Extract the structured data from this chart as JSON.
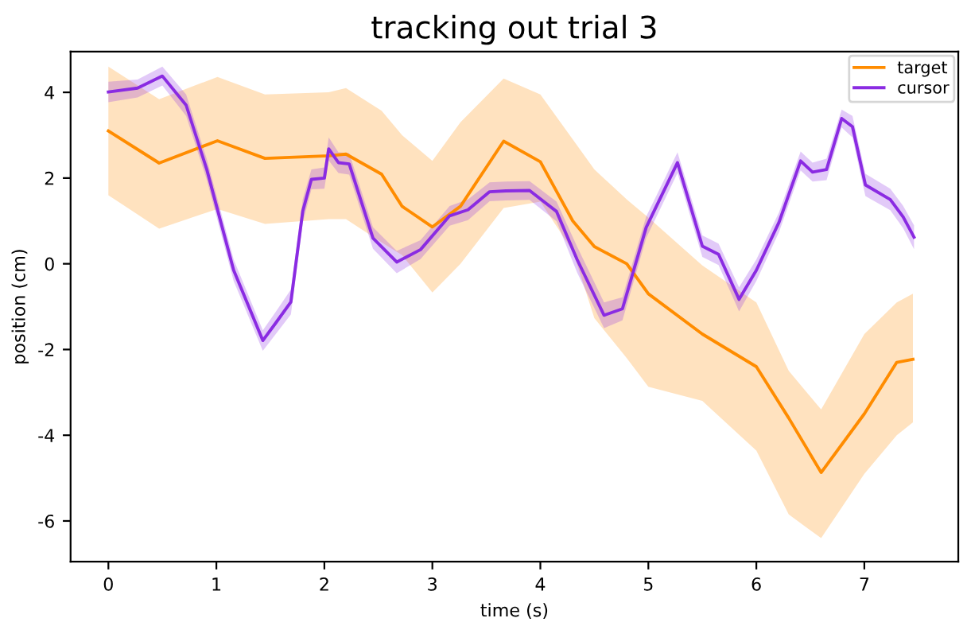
{
  "chart_data": {
    "type": "line",
    "title": "tracking out trial 3",
    "xlabel": "time (s)",
    "ylabel": "position (cm)",
    "xlim": [
      -0.35,
      7.87
    ],
    "ylim": [
      -6.95,
      4.95
    ],
    "xticks": [
      0,
      1,
      2,
      3,
      4,
      5,
      6,
      7
    ],
    "yticks": [
      -6,
      -4,
      -2,
      0,
      2,
      4
    ],
    "grid": false,
    "legend": "top right",
    "marker": "none",
    "line_style": "solid",
    "series": [
      {
        "name": "target",
        "color": "#ff8c00",
        "x": [
          0,
          0.47,
          1.01,
          1.45,
          2.04,
          2.2,
          2.53,
          2.72,
          3.0,
          3.26,
          3.66,
          4.0,
          4.3,
          4.5,
          4.8,
          5.0,
          5.5,
          6.0,
          6.3,
          6.6,
          7.0,
          7.3,
          7.45
        ],
        "values": [
          3.1,
          2.35,
          2.87,
          2.46,
          2.52,
          2.56,
          2.09,
          1.34,
          0.86,
          1.34,
          2.86,
          2.38,
          1.0,
          0.4,
          0.0,
          -0.7,
          -1.64,
          -2.4,
          -3.6,
          -4.87,
          -3.5,
          -2.3,
          -2.23
        ],
        "upper": [
          4.6,
          3.84,
          4.36,
          3.95,
          4.0,
          4.1,
          3.57,
          3.0,
          2.4,
          3.3,
          4.32,
          3.95,
          2.9,
          2.2,
          1.5,
          1.08,
          -0.04,
          -0.9,
          -2.5,
          -3.4,
          -1.64,
          -0.9,
          -0.7
        ],
        "lower": [
          1.6,
          0.82,
          1.28,
          0.93,
          1.04,
          1.04,
          0.5,
          0.2,
          -0.67,
          0.0,
          1.3,
          1.45,
          0.3,
          -1.27,
          -2.2,
          -2.87,
          -3.2,
          -4.36,
          -5.85,
          -6.4,
          -4.9,
          -4.0,
          -3.7
        ]
      },
      {
        "name": "cursor",
        "color": "#8a2be2",
        "x": [
          0,
          0.27,
          0.5,
          0.72,
          0.91,
          1.16,
          1.43,
          1.55,
          1.69,
          1.8,
          1.88,
          2.0,
          2.04,
          2.13,
          2.23,
          2.45,
          2.67,
          2.89,
          3.16,
          3.33,
          3.53,
          3.68,
          3.9,
          4.15,
          4.34,
          4.59,
          4.76,
          4.98,
          5.27,
          5.5,
          5.65,
          5.84,
          6.0,
          6.21,
          6.41,
          6.52,
          6.65,
          6.79,
          6.89,
          7.01,
          7.24,
          7.36,
          7.46
        ],
        "values": [
          4.01,
          4.1,
          4.38,
          3.7,
          2.21,
          -0.15,
          -1.79,
          -1.38,
          -0.89,
          1.23,
          1.97,
          2.0,
          2.68,
          2.36,
          2.33,
          0.6,
          0.04,
          0.33,
          1.12,
          1.26,
          1.68,
          1.7,
          1.71,
          1.22,
          0.1,
          -1.2,
          -1.05,
          0.85,
          2.36,
          0.41,
          0.22,
          -0.83,
          -0.15,
          0.97,
          2.4,
          2.14,
          2.2,
          3.39,
          3.2,
          1.84,
          1.5,
          1.09,
          0.62
        ],
        "upper": [
          4.25,
          4.3,
          4.6,
          3.95,
          2.45,
          0.1,
          -1.55,
          -1.12,
          -0.6,
          1.5,
          2.2,
          2.25,
          2.95,
          2.6,
          2.58,
          0.85,
          0.3,
          0.55,
          1.35,
          1.5,
          1.9,
          1.92,
          1.93,
          1.45,
          0.4,
          -0.9,
          -0.78,
          1.1,
          2.6,
          0.66,
          0.47,
          -0.55,
          0.1,
          1.2,
          2.62,
          2.36,
          2.45,
          3.6,
          3.45,
          2.1,
          1.75,
          1.35,
          0.9
        ],
        "lower": [
          3.77,
          3.88,
          4.16,
          3.45,
          1.97,
          -0.4,
          -2.03,
          -1.64,
          -1.18,
          0.96,
          1.74,
          1.75,
          2.41,
          2.12,
          2.08,
          0.35,
          -0.22,
          0.11,
          0.89,
          1.02,
          1.46,
          1.48,
          1.49,
          0.99,
          -0.2,
          -1.5,
          -1.32,
          0.6,
          2.12,
          0.16,
          -0.03,
          -1.11,
          -0.4,
          0.74,
          2.18,
          1.92,
          1.95,
          3.18,
          2.95,
          1.58,
          1.25,
          0.83,
          0.34
        ]
      }
    ]
  }
}
